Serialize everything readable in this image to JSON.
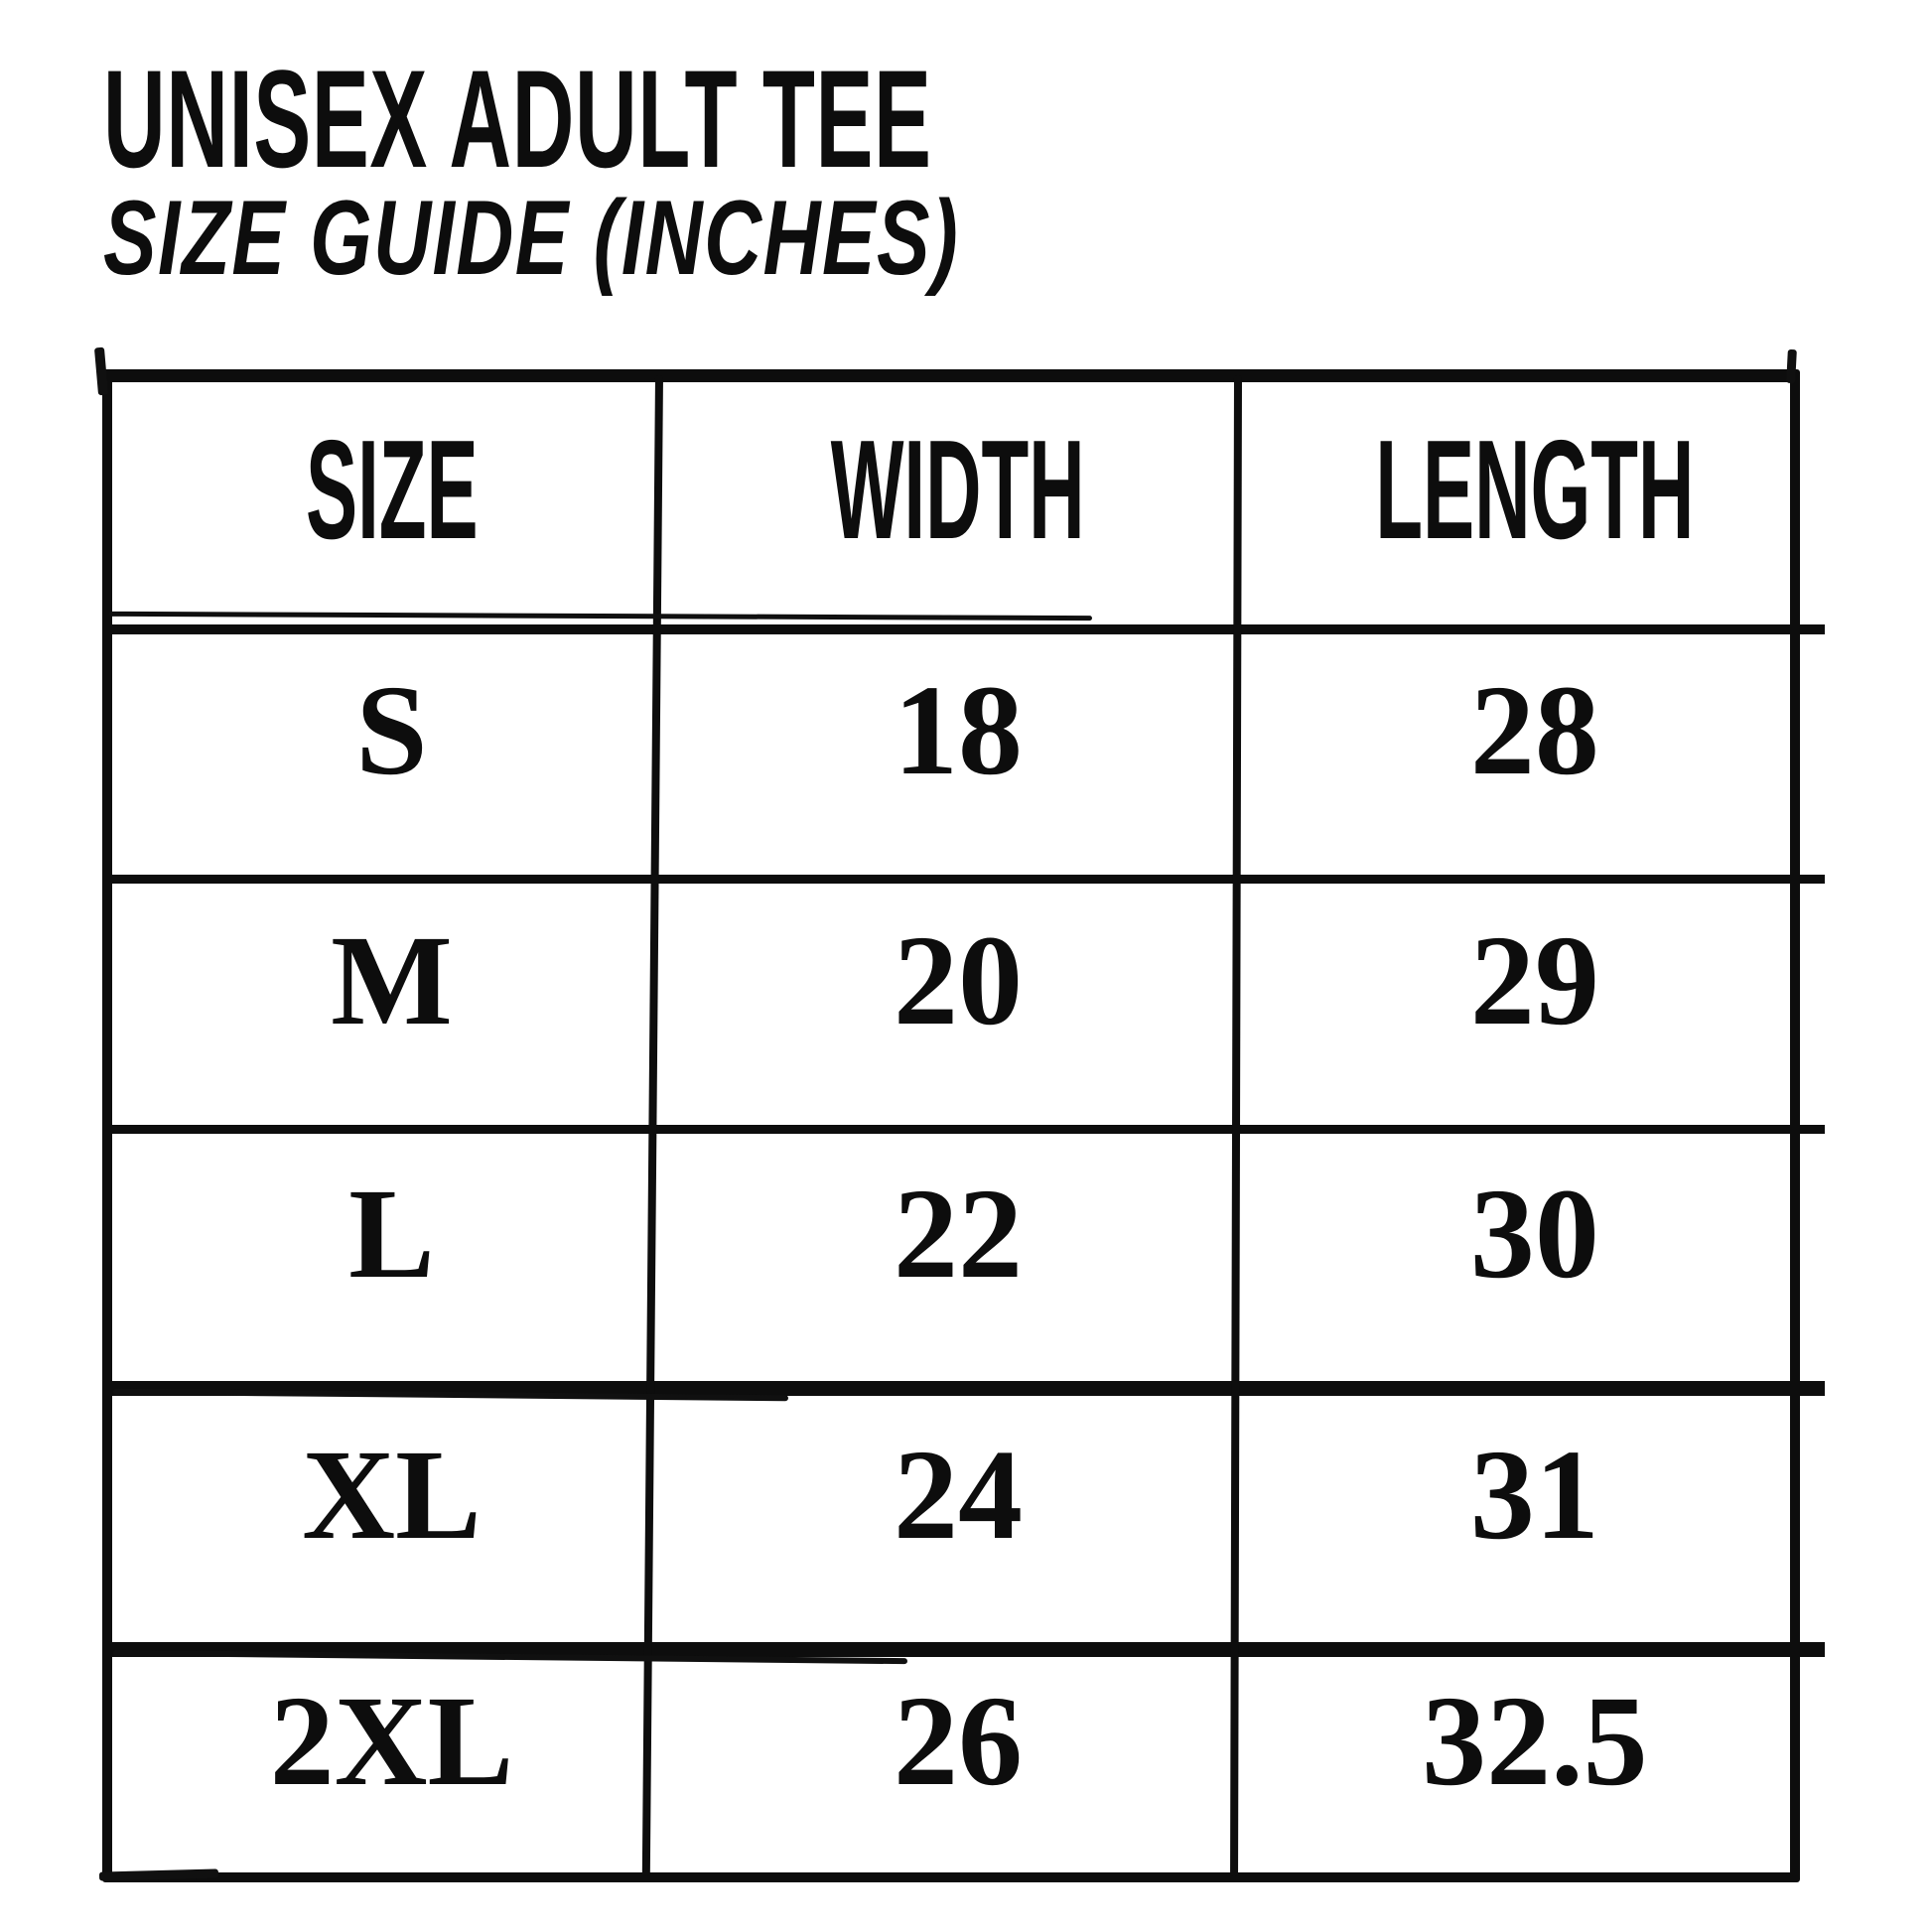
{
  "colors": {
    "background": "#ffffff",
    "ink": "#0d0d0d"
  },
  "heading": {
    "title": "UNISEX ADULT TEE",
    "subtitle": "SIZE GUIDE (INCHES)"
  },
  "table": {
    "columns": [
      "SIZE",
      "WIDTH",
      "LENGTH"
    ],
    "rows": [
      {
        "size": "S",
        "width": "18",
        "length": "28"
      },
      {
        "size": "M",
        "width": "20",
        "length": "29"
      },
      {
        "size": "L",
        "width": "22",
        "length": "30"
      },
      {
        "size": "XL",
        "width": "24",
        "length": "31"
      },
      {
        "size": "2XL",
        "width": "26",
        "length": "32.5"
      }
    ]
  },
  "chart_data": {
    "type": "table",
    "title": "UNISEX ADULT TEE",
    "subtitle": "SIZE GUIDE (INCHES)",
    "units": "inches",
    "columns": [
      "SIZE",
      "WIDTH",
      "LENGTH"
    ],
    "rows": [
      [
        "S",
        18,
        28
      ],
      [
        "M",
        20,
        29
      ],
      [
        "L",
        22,
        30
      ],
      [
        "XL",
        24,
        31
      ],
      [
        "2XL",
        26,
        32.5
      ]
    ]
  }
}
